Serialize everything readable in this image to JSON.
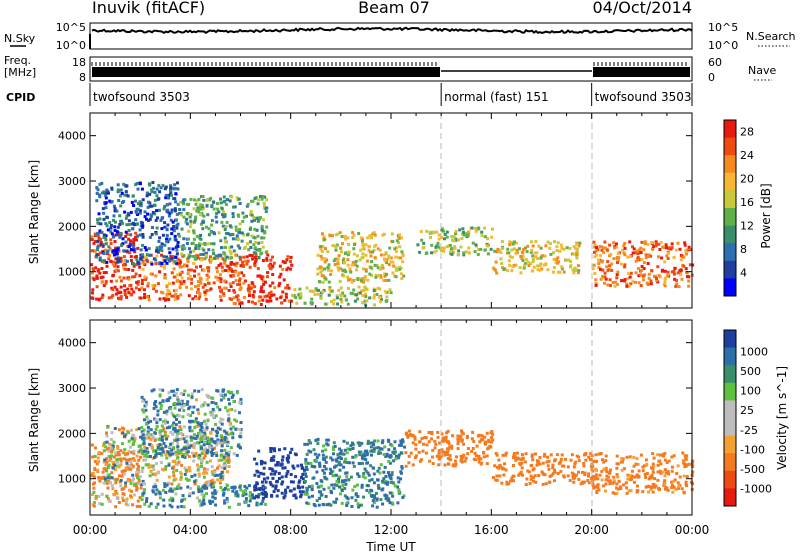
{
  "header": {
    "station": "Inuvik (fitACF)",
    "beam": "Beam 07",
    "date": "04/Oct/2014"
  },
  "panel_labels": {
    "nsky": "N.Sky",
    "nsky_top": "10^5",
    "nsky_bottom": "10^0",
    "nsearch": "N.Search",
    "nsearch_top": "10^5",
    "nsearch_bottom": "10^0",
    "freq_line1": "Freq.",
    "freq_line2": "[MHz]",
    "freq_top": "18",
    "freq_bottom": "8",
    "nave": "Nave",
    "nave_top": "60",
    "nave_bottom": "0",
    "cpid": "CPID"
  },
  "cpid_segments": [
    {
      "label": "twofsound 3503",
      "start_hour": 0,
      "end_hour": 14
    },
    {
      "label": "normal (fast) 151",
      "start_hour": 14,
      "end_hour": 20
    },
    {
      "label": "twofsound 3503",
      "start_hour": 20,
      "end_hour": 24
    }
  ],
  "x_axis": {
    "title": "Time UT",
    "ticks": [
      "00:00",
      "04:00",
      "08:00",
      "12:00",
      "16:00",
      "20:00",
      "00:00"
    ],
    "range_hours": [
      0,
      24
    ]
  },
  "colors": {
    "power_scale": [
      "#0000ff",
      "#1f3fa0",
      "#2e6fb0",
      "#3a8f6a",
      "#5fb04a",
      "#c8c83a",
      "#f7b733",
      "#f58a1f",
      "#f04a14",
      "#e8190f"
    ],
    "velocity_scale": [
      "#1f3fa0",
      "#2f6fa8",
      "#3a8f6a",
      "#5cc040",
      "#bdbdbd",
      "#bdbdbd",
      "#f5a033",
      "#f57a1f",
      "#f04a14",
      "#e8190f"
    ],
    "dash_line": "#bbbbbb"
  },
  "chart_data": [
    {
      "type": "heatmap",
      "title": "Power",
      "xlabel": "Time UT",
      "ylabel": "Slant Range [km]",
      "xlim_hours": [
        0,
        24
      ],
      "ylim": [
        200,
        4500
      ],
      "yticks": [
        "1000",
        "2000",
        "3000",
        "4000"
      ],
      "colorbar": {
        "label": "Power [dB]",
        "ticks": [
          "4",
          "8",
          "12",
          "16",
          "20",
          "24",
          "28"
        ],
        "range": [
          0,
          30
        ]
      },
      "regions": [
        {
          "start_hour": 0.0,
          "end_hour": 2.0,
          "range_low": 400,
          "range_high": 1900,
          "value": 28
        },
        {
          "start_hour": 2.0,
          "end_hour": 5.5,
          "range_low": 400,
          "range_high": 1400,
          "value": 24
        },
        {
          "start_hour": 0.2,
          "end_hour": 3.5,
          "range_low": 1200,
          "range_high": 3000,
          "value": 6
        },
        {
          "start_hour": 3.5,
          "end_hour": 7.0,
          "range_low": 1300,
          "range_high": 2700,
          "value": 12
        },
        {
          "start_hour": 5.5,
          "end_hour": 8.0,
          "range_low": 300,
          "range_high": 1400,
          "value": 27
        },
        {
          "start_hour": 8.0,
          "end_hour": 12.0,
          "range_low": 300,
          "range_high": 700,
          "value": 16
        },
        {
          "start_hour": 9.0,
          "end_hour": 12.5,
          "range_low": 800,
          "range_high": 1900,
          "value": 18
        },
        {
          "start_hour": 13.0,
          "end_hour": 16.0,
          "range_low": 1400,
          "range_high": 2000,
          "value": 15
        },
        {
          "start_hour": 16.0,
          "end_hour": 19.5,
          "range_low": 1000,
          "range_high": 1700,
          "value": 19
        },
        {
          "start_hour": 20.0,
          "end_hour": 24.0,
          "range_low": 700,
          "range_high": 1700,
          "value": 24
        }
      ]
    },
    {
      "type": "heatmap",
      "title": "Velocity",
      "xlabel": "Time UT",
      "ylabel": "Slant Range [km]",
      "xlim_hours": [
        0,
        24
      ],
      "ylim": [
        200,
        4500
      ],
      "yticks": [
        "1000",
        "2000",
        "3000",
        "4000"
      ],
      "colorbar": {
        "label": "Velocity [m s^-1]",
        "ticks": [
          "1000",
          "500",
          "100",
          "25",
          "-25",
          "-100",
          "-500",
          "-1000"
        ]
      },
      "regions": [
        {
          "start_hour": 0.0,
          "end_hour": 2.0,
          "range_low": 400,
          "range_high": 1800,
          "value": -100
        },
        {
          "start_hour": 0.5,
          "end_hour": 5.5,
          "range_low": 900,
          "range_high": 2200,
          "value": 0
        },
        {
          "start_hour": 2.0,
          "end_hour": 6.0,
          "range_low": 1500,
          "range_high": 3000,
          "value": 120
        },
        {
          "start_hour": 2.0,
          "end_hour": 7.0,
          "range_low": 400,
          "range_high": 900,
          "value": 150
        },
        {
          "start_hour": 6.5,
          "end_hour": 8.5,
          "range_low": 600,
          "range_high": 1700,
          "value": 800
        },
        {
          "start_hour": 8.5,
          "end_hour": 12.5,
          "range_low": 400,
          "range_high": 1900,
          "value": 200
        },
        {
          "start_hour": 12.5,
          "end_hour": 16.0,
          "range_low": 1300,
          "range_high": 2100,
          "value": -300
        },
        {
          "start_hour": 16.0,
          "end_hour": 20.0,
          "range_low": 900,
          "range_high": 1600,
          "value": -300
        },
        {
          "start_hour": 20.0,
          "end_hour": 24.0,
          "range_low": 700,
          "range_high": 1600,
          "value": -200
        }
      ]
    }
  ]
}
